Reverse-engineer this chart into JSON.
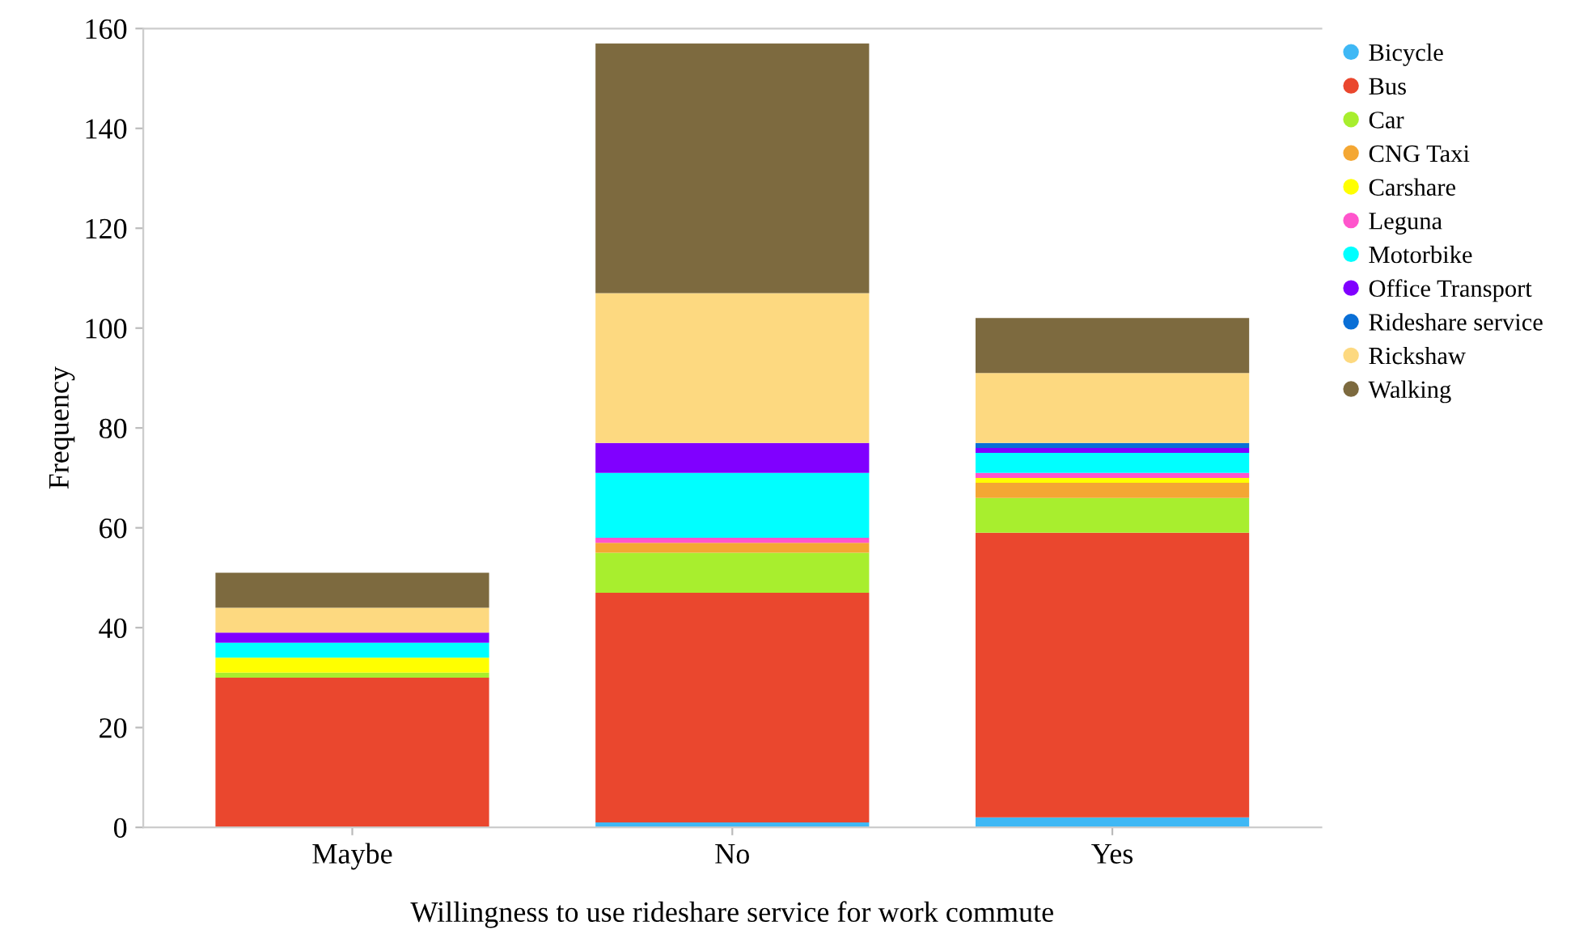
{
  "chart_data": {
    "type": "bar",
    "stacked": true,
    "xlabel": "Willingness to use rideshare service for work commute",
    "ylabel": "Frequency",
    "categories": [
      "Maybe",
      "No",
      "Yes"
    ],
    "series": [
      {
        "name": "Bicycle",
        "color": "#3fb8f5",
        "values": [
          0,
          1,
          2
        ]
      },
      {
        "name": "Bus",
        "color": "#ea472e",
        "values": [
          30,
          46,
          57
        ]
      },
      {
        "name": "Car",
        "color": "#a8ee2e",
        "values": [
          1,
          8,
          7
        ]
      },
      {
        "name": "CNG Taxi",
        "color": "#f4a733",
        "values": [
          0,
          2,
          3
        ]
      },
      {
        "name": "Carshare",
        "color": "#ffff00",
        "values": [
          3,
          0,
          1
        ]
      },
      {
        "name": "Leguna",
        "color": "#ff55cc",
        "values": [
          0,
          1,
          1
        ]
      },
      {
        "name": "Motorbike",
        "color": "#00ffff",
        "values": [
          3,
          13,
          4
        ]
      },
      {
        "name": "Office Transport",
        "color": "#8000ff",
        "values": [
          2,
          6,
          1
        ]
      },
      {
        "name": "Rideshare service",
        "color": "#0a6fd6",
        "values": [
          0,
          0,
          1
        ]
      },
      {
        "name": "Rickshaw",
        "color": "#fdd980",
        "values": [
          5,
          30,
          14
        ]
      },
      {
        "name": "Walking",
        "color": "#7d6a3f",
        "values": [
          7,
          50,
          11
        ]
      }
    ],
    "ylim": [
      0,
      160
    ],
    "yticks": [
      0,
      20,
      40,
      60,
      80,
      100,
      120,
      140,
      160
    ],
    "grid": false,
    "legend": "top right"
  }
}
